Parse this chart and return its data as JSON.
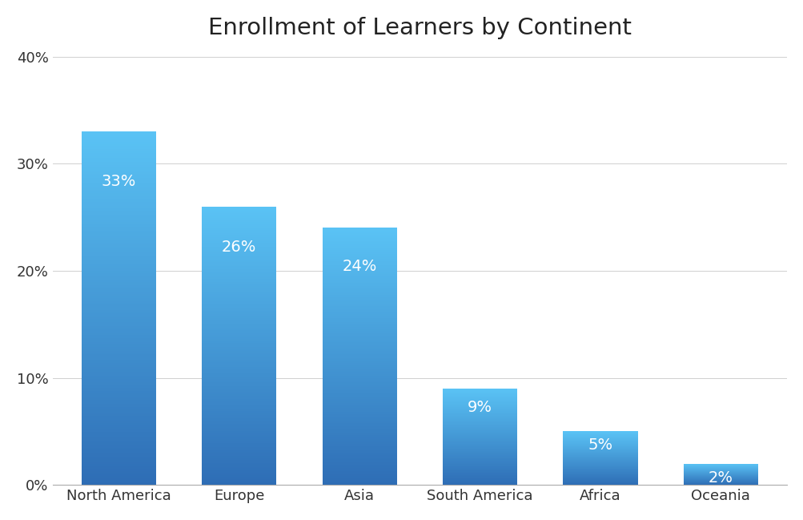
{
  "title": "Enrollment of Learners by Continent",
  "categories": [
    "North America",
    "Europe",
    "Asia",
    "South America",
    "Africa",
    "Oceania"
  ],
  "values": [
    33,
    26,
    24,
    9,
    5,
    2
  ],
  "labels": [
    "33%",
    "26%",
    "24%",
    "9%",
    "5%",
    "2%"
  ],
  "bar_color_top": "#5ac3f5",
  "bar_color_mid": "#4499e0",
  "bar_color_bottom": "#2e6db5",
  "label_color": "#ffffff",
  "background_color": "#ffffff",
  "title_fontsize": 21,
  "label_fontsize": 14,
  "tick_fontsize": 13,
  "ylim": [
    0,
    40
  ],
  "yticks": [
    0,
    10,
    20,
    30,
    40
  ],
  "ytick_labels": [
    "0%",
    "10%",
    "20%",
    "30%",
    "40%"
  ],
  "grid_color": "#d0d0d0",
  "bar_width": 0.62
}
